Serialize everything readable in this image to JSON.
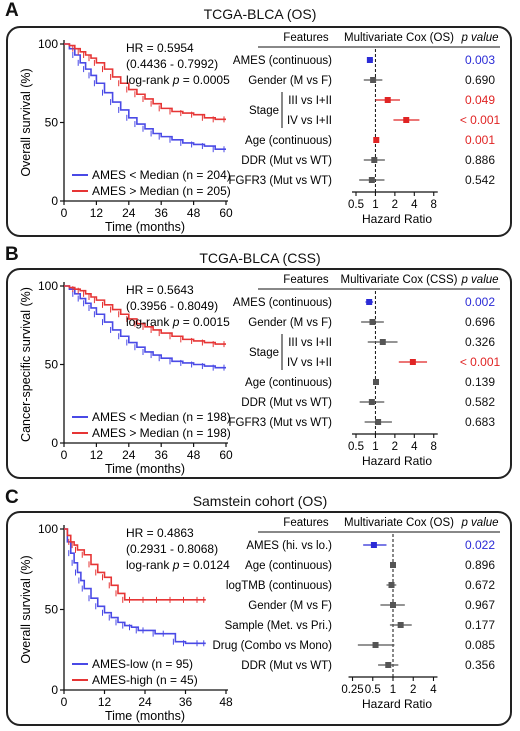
{
  "panels": [
    {
      "letter": "A",
      "title": "TCGA-BLCA (OS)",
      "km": {
        "ylabel": "Overall survival (%)",
        "xlabel": "Time (months)",
        "xticks": [
          0,
          12,
          24,
          36,
          48,
          60
        ],
        "yticks": [
          0,
          50,
          100
        ],
        "xlim": [
          0,
          60
        ],
        "ylim": [
          0,
          100
        ],
        "hr": "HR = 0.5954",
        "ci": "(0.4436 - 0.7992)",
        "logrank_prefix": "log-rank ",
        "p_symbol": "p",
        "logrank_value": " = 0.0005",
        "series": [
          {
            "name": "AMES < Median (n = 204)",
            "color": "#4a4ae6",
            "x": [
              0,
              2,
              4,
              6,
              8,
              10,
              12,
              15,
              18,
              21,
              24,
              27,
              30,
              33,
              36,
              40,
              44,
              48,
              52,
              56,
              60
            ],
            "y": [
              100,
              97,
              93,
              88,
              84,
              80,
              75,
              69,
              63,
              58,
              53,
              49,
              46,
              43,
              41,
              39,
              37,
              36,
              35,
              33,
              33
            ]
          },
          {
            "name": "AMES > Median (n = 205)",
            "color": "#e63535",
            "x": [
              0,
              2,
              4,
              6,
              8,
              10,
              12,
              15,
              18,
              21,
              24,
              27,
              30,
              33,
              36,
              40,
              44,
              48,
              52,
              56,
              60
            ],
            "y": [
              100,
              99,
              97,
              95,
              93,
              91,
              88,
              84,
              79,
              75,
              71,
              68,
              65,
              62,
              59,
              57,
              56,
              55,
              53,
              52,
              52
            ]
          }
        ]
      },
      "forest": {
        "header_features": "Features",
        "header_model": "Multivariate Cox (OS)",
        "header_p": "p value",
        "xlabel": "Hazard Ratio",
        "scale": "log2",
        "xticks": [
          "0.5",
          "1",
          "2",
          "4",
          "8"
        ],
        "xlim": [
          0.35,
          10
        ],
        "rows": [
          {
            "label": "AMES (continuous)",
            "hr": 0.82,
            "lo": 0.74,
            "hi": 0.92,
            "p": "0.003",
            "color": "#2b2bd6"
          },
          {
            "label": "Gender (M vs F)",
            "hr": 0.92,
            "lo": 0.66,
            "hi": 1.28,
            "p": "0.690",
            "color": "#111111"
          },
          {
            "label": "III vs I+II",
            "group": "Stage",
            "hr": 1.55,
            "lo": 1.0,
            "hi": 2.4,
            "p": "0.049",
            "color": "#e02424"
          },
          {
            "label": "IV vs I+II",
            "group": "Stage",
            "hr": 3.0,
            "lo": 1.9,
            "hi": 4.8,
            "p": "< 0.001",
            "color": "#e02424"
          },
          {
            "label": "Age (continuous)",
            "hr": 1.03,
            "lo": 1.01,
            "hi": 1.05,
            "p": "0.001",
            "color": "#e02424"
          },
          {
            "label": "DDR (Mut vs WT)",
            "hr": 0.96,
            "lo": 0.66,
            "hi": 1.4,
            "p": "0.886",
            "color": "#111111"
          },
          {
            "label": "FGFR3 (Mut vs WT)",
            "hr": 0.88,
            "lo": 0.56,
            "hi": 1.38,
            "p": "0.542",
            "color": "#111111"
          }
        ]
      }
    },
    {
      "letter": "B",
      "title": "TCGA-BLCA (CSS)",
      "km": {
        "ylabel": "Cancer-specific survival (%)",
        "xlabel": "Time (months)",
        "xticks": [
          0,
          12,
          24,
          36,
          48,
          60
        ],
        "yticks": [
          0,
          50,
          100
        ],
        "xlim": [
          0,
          60
        ],
        "ylim": [
          0,
          100
        ],
        "hr": "HR = 0.5643",
        "ci": "(0.3956 - 0.8049)",
        "logrank_prefix": "log-rank ",
        "p_symbol": "p",
        "logrank_value": " = 0.0015",
        "series": [
          {
            "name": "AMES < Median (n = 198)",
            "color": "#4a4ae6",
            "x": [
              0,
              2,
              4,
              6,
              8,
              10,
              12,
              15,
              18,
              21,
              24,
              27,
              30,
              33,
              36,
              40,
              44,
              48,
              52,
              56,
              60
            ],
            "y": [
              100,
              98,
              95,
              92,
              89,
              86,
              82,
              77,
              72,
              68,
              64,
              61,
              58,
              56,
              54,
              52,
              51,
              50,
              49,
              48,
              48
            ]
          },
          {
            "name": "AMES > Median (n = 198)",
            "color": "#e63535",
            "x": [
              0,
              2,
              4,
              6,
              8,
              10,
              12,
              15,
              18,
              21,
              24,
              27,
              30,
              33,
              36,
              40,
              44,
              48,
              52,
              56,
              60
            ],
            "y": [
              100,
              99,
              98,
              97,
              95,
              93,
              91,
              88,
              85,
              82,
              79,
              76,
              74,
              72,
              70,
              68,
              66,
              65,
              64,
              63,
              63
            ]
          }
        ]
      },
      "forest": {
        "header_features": "Features",
        "header_model": "Multivariate Cox (CSS)",
        "header_p": "p value",
        "xlabel": "Hazard Ratio",
        "scale": "log2",
        "xticks": [
          "0.5",
          "1",
          "2",
          "4",
          "8"
        ],
        "xlim": [
          0.35,
          10
        ],
        "rows": [
          {
            "label": "AMES (continuous)",
            "hr": 0.8,
            "lo": 0.7,
            "hi": 0.92,
            "p": "0.002",
            "color": "#2b2bd6"
          },
          {
            "label": "Gender (M vs F)",
            "hr": 0.9,
            "lo": 0.6,
            "hi": 1.35,
            "p": "0.696",
            "color": "#111111"
          },
          {
            "label": "III vs I+II",
            "group": "Stage",
            "hr": 1.3,
            "lo": 0.76,
            "hi": 2.2,
            "p": "0.326",
            "color": "#111111"
          },
          {
            "label": "IV vs I+II",
            "group": "Stage",
            "hr": 3.8,
            "lo": 2.3,
            "hi": 6.3,
            "p": "< 0.001",
            "color": "#e02424"
          },
          {
            "label": "Age (continuous)",
            "hr": 1.02,
            "lo": 1.0,
            "hi": 1.04,
            "p": "0.139",
            "color": "#111111"
          },
          {
            "label": "DDR (Mut vs WT)",
            "hr": 0.88,
            "lo": 0.57,
            "hi": 1.37,
            "p": "0.582",
            "color": "#111111"
          },
          {
            "label": "FGFR3 (Mut vs WT)",
            "hr": 1.1,
            "lo": 0.68,
            "hi": 1.8,
            "p": "0.683",
            "color": "#111111"
          }
        ]
      }
    },
    {
      "letter": "C",
      "title": "Samstein  cohort (OS)",
      "km": {
        "ylabel": "Overall survival (%)",
        "xlabel": "Time (months)",
        "xticks": [
          0,
          12,
          24,
          36,
          48
        ],
        "yticks": [
          0,
          50,
          100
        ],
        "xlim": [
          0,
          48
        ],
        "ylim": [
          0,
          100
        ],
        "hr": "HR = 0.4863",
        "ci": "(0.2931 - 0.8068)",
        "logrank_prefix": "log-rank ",
        "p_symbol": "p",
        "logrank_value": " = 0.0124",
        "series": [
          {
            "name": "AMES-low (n = 95)",
            "color": "#4a4ae6",
            "x": [
              0,
              1,
              2,
              3,
              4,
              5,
              6,
              8,
              10,
              12,
              14,
              16,
              18,
              20,
              22,
              24,
              27,
              30,
              33,
              36,
              40,
              42
            ],
            "y": [
              100,
              92,
              85,
              79,
              73,
              68,
              63,
              57,
              52,
              48,
              45,
              42,
              40,
              39,
              37,
              37,
              35,
              35,
              30,
              29,
              29,
              29
            ]
          },
          {
            "name": "AMES-high (n = 45)",
            "color": "#e63535",
            "x": [
              0,
              1,
              2,
              3,
              4,
              6,
              8,
              10,
              12,
              14,
              16,
              18,
              20,
              24,
              28,
              32,
              36,
              40,
              42
            ],
            "y": [
              100,
              96,
              92,
              90,
              87,
              84,
              78,
              73,
              70,
              65,
              60,
              56,
              56,
              56,
              56,
              56,
              56,
              56,
              56
            ]
          }
        ]
      },
      "forest": {
        "header_features": "Features",
        "header_model": "Multivariate Cox (OS)",
        "header_p": "p value",
        "xlabel": "Hazard Ratio",
        "scale": "log2",
        "xticks": [
          "0.25",
          "0.5",
          "1",
          "2",
          "4"
        ],
        "xlim": [
          0.2,
          5
        ],
        "rows": [
          {
            "label": "AMES (hi. vs lo.)",
            "hr": 0.52,
            "lo": 0.36,
            "hi": 0.8,
            "p": "0.022",
            "color": "#2b2bd6"
          },
          {
            "label": "Age (continuous)",
            "hr": 1.0,
            "lo": 0.98,
            "hi": 1.02,
            "p": "0.896",
            "color": "#111111"
          },
          {
            "label": "logTMB (continuous)",
            "hr": 0.95,
            "lo": 0.8,
            "hi": 1.12,
            "p": "0.672",
            "color": "#111111"
          },
          {
            "label": "Gender (M vs F)",
            "hr": 1.0,
            "lo": 0.65,
            "hi": 1.5,
            "p": "0.967",
            "color": "#111111"
          },
          {
            "label": "Sample (Met. vs Pri.)",
            "hr": 1.3,
            "lo": 0.9,
            "hi": 1.9,
            "p": "0.177",
            "color": "#111111"
          },
          {
            "label": "Drug (Combo vs Mono)",
            "hr": 0.55,
            "lo": 0.3,
            "hi": 1.05,
            "p": "0.085",
            "color": "#111111"
          },
          {
            "label": "DDR (Mut vs WT)",
            "hr": 0.85,
            "lo": 0.6,
            "hi": 1.2,
            "p": "0.356",
            "color": "#111111"
          }
        ]
      }
    }
  ]
}
